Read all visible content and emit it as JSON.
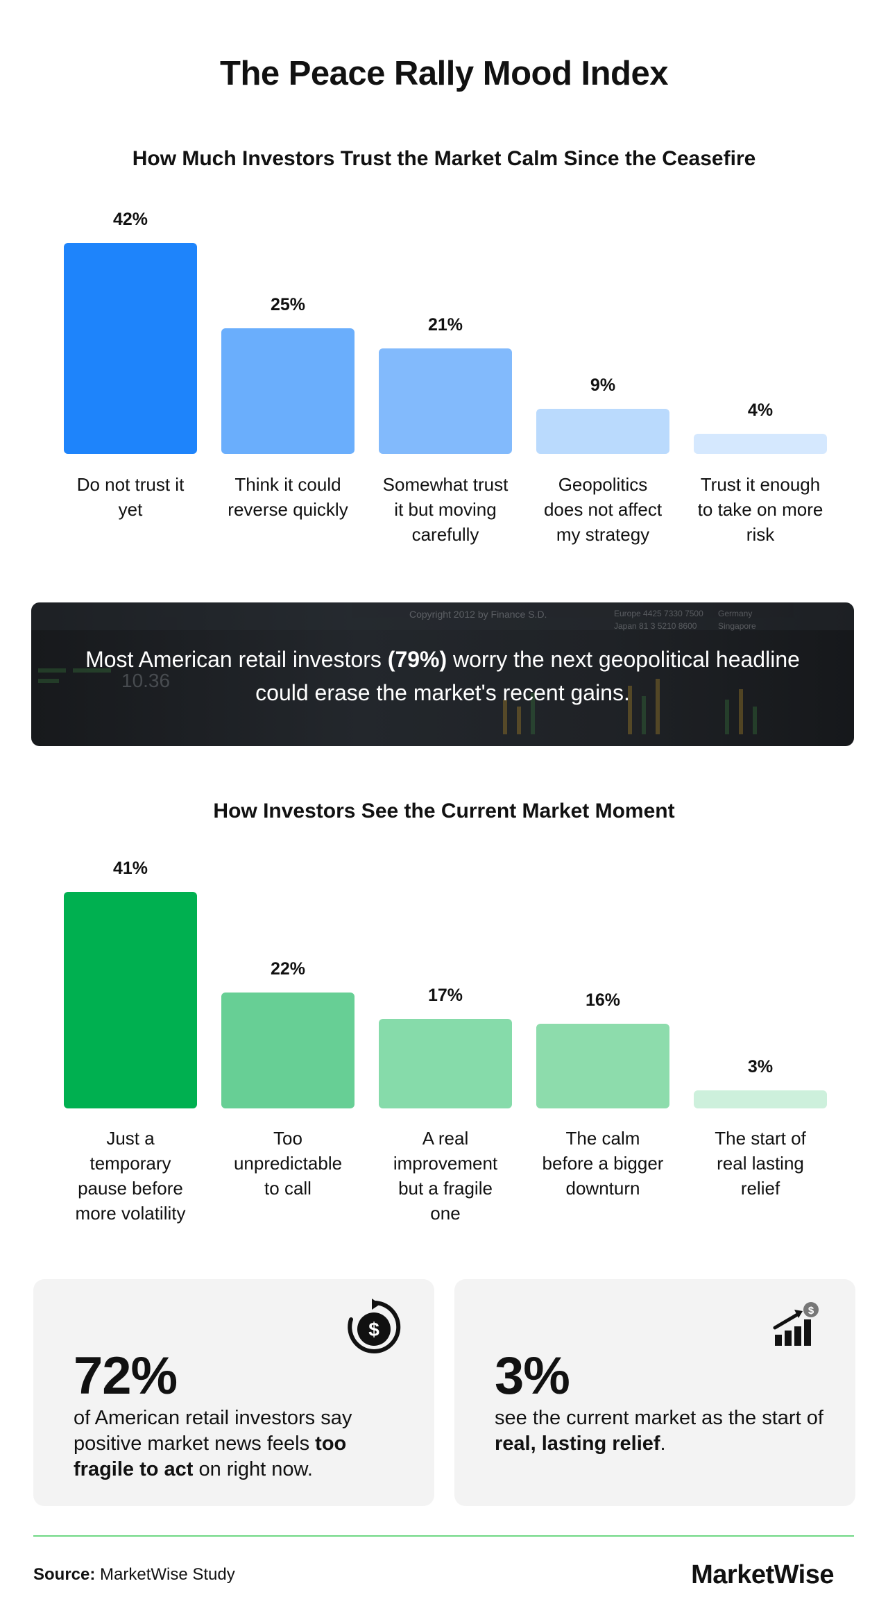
{
  "title": "The Peace Rally Mood Index",
  "chart_data": [
    {
      "type": "bar",
      "title": "How Much Investors Trust the Market Calm Since the Ceasefire",
      "categories": [
        "Do not trust it yet",
        "Think it could reverse quickly",
        "Somewhat trust it but moving carefully",
        "Geopolitics does not affect my strategy",
        "Trust it enough to take on more risk"
      ],
      "category_lines": [
        [
          "Do not trust it",
          "yet"
        ],
        [
          "Think it could",
          "reverse quickly"
        ],
        [
          "Somewhat trust",
          "it but moving",
          "carefully"
        ],
        [
          "Geopolitics",
          "does not affect",
          "my strategy"
        ],
        [
          "Trust it enough",
          "to take on more",
          "risk"
        ]
      ],
      "values": [
        42,
        25,
        21,
        9,
        4
      ],
      "value_labels": [
        "42%",
        "25%",
        "21%",
        "9%",
        "4%"
      ],
      "colors": [
        "#1e84fb",
        "#6aaefc",
        "#82bafc",
        "#badafd",
        "#d5e8fe"
      ],
      "xlabel": "",
      "ylabel": "",
      "grid": false
    },
    {
      "type": "bar",
      "title": "How Investors See the Current Market Moment",
      "categories": [
        "Just a temporary pause before more volatility",
        "Too unpredictable to call",
        "A real improvement but a fragile one",
        "The calm before a bigger downturn",
        "The start of real lasting relief"
      ],
      "category_lines": [
        [
          "Just a",
          "temporary",
          "pause before",
          "more volatility"
        ],
        [
          "Too",
          "unpredictable",
          "to call"
        ],
        [
          "A real",
          "improvement",
          "but a fragile",
          "one"
        ],
        [
          "The calm",
          "before a bigger",
          "downturn"
        ],
        [
          "The start of",
          "real lasting",
          "relief"
        ]
      ],
      "values": [
        41,
        22,
        17,
        16,
        3
      ],
      "value_labels": [
        "41%",
        "22%",
        "17%",
        "16%",
        "3%"
      ],
      "colors": [
        "#00b050",
        "#67cf95",
        "#86dbaa",
        "#8ddcac",
        "#cdf0dc"
      ],
      "xlabel": "",
      "ylabel": "",
      "grid": false
    }
  ],
  "banner": {
    "before": "Most American retail investors ",
    "highlight": "(79%)",
    "after": " worry the next geopolitical headline could erase the market's recent gains.",
    "background_text": [
      "Copyright 2012 by Finance S.D.",
      "Europe 4425 7330 7500",
      "Japan 81 3 5210 8600",
      "Germany",
      "Singapore",
      "10.36"
    ]
  },
  "cards": [
    {
      "big": "72%",
      "text_before": "of American retail investors say positive market news feels ",
      "text_bold": "too fragile to act",
      "text_after": " on right now.",
      "icon": "dollar-cycle-icon"
    },
    {
      "big": "3%",
      "text_before": "see the current market as the start of ",
      "text_bold": "real, lasting relief",
      "text_after": ".",
      "icon": "growth-chart-dollar-icon"
    }
  ],
  "footer": {
    "source_label": "Source:",
    "source_value": " MarketWise Study",
    "logo": "MarketWise",
    "divider_color": "#6fd884"
  }
}
